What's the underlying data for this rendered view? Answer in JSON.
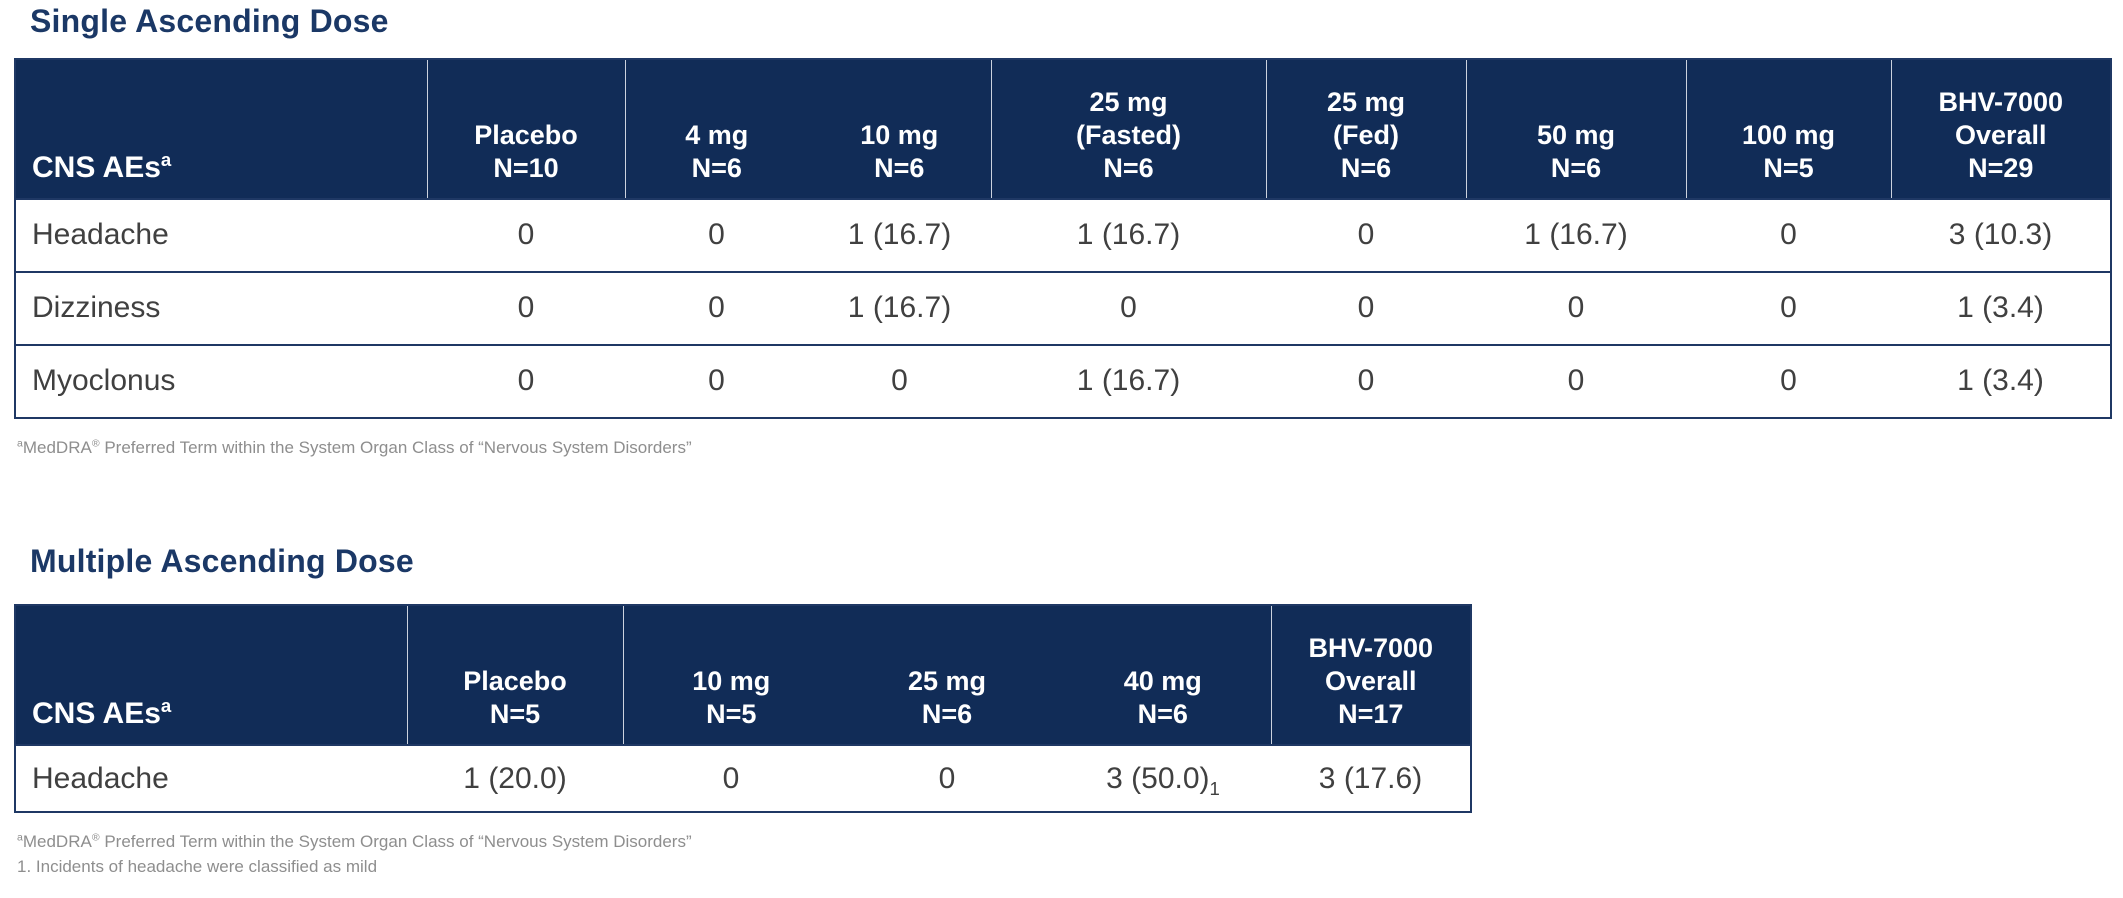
{
  "colors": {
    "header_bg": "#112c57",
    "title_text": "#1b3866",
    "table_border": "#1f3864",
    "body_text": "#404040",
    "footnote_text": "#8e8e8e",
    "header_text": "#ffffff",
    "header_separator": "#ccd2de"
  },
  "sections": [
    {
      "title": "Single Ascending Dose",
      "table": {
        "label_header": [
          {
            "t": "CNS AEs"
          },
          {
            "t": "a",
            "s": "sup"
          }
        ],
        "columns": [
          {
            "lines": [
              "Placebo",
              "N=10"
            ]
          },
          {
            "lines": [
              "4 mg",
              "N=6"
            ]
          },
          {
            "lines": [
              "10 mg",
              "N=6"
            ]
          },
          {
            "lines": [
              "25 mg",
              "(Fasted)",
              "N=6"
            ]
          },
          {
            "lines": [
              "25 mg",
              "(Fed)",
              "N=6"
            ]
          },
          {
            "lines": [
              "50 mg",
              "N=6"
            ]
          },
          {
            "lines": [
              "100 mg",
              "N=5"
            ]
          },
          {
            "lines": [
              "BHV-7000",
              "Overall",
              "N=29"
            ]
          }
        ],
        "rows": [
          {
            "label": "Headache",
            "values": [
              "0",
              "0",
              "1 (16.7)",
              "1 (16.7)",
              "0",
              "1 (16.7)",
              "0",
              "3 (10.3)"
            ]
          },
          {
            "label": "Dizziness",
            "values": [
              "0",
              "0",
              "1 (16.7)",
              "0",
              "0",
              "0",
              "0",
              "1 (3.4)"
            ]
          },
          {
            "label": "Myoclonus",
            "values": [
              "0",
              "0",
              "0",
              "1 (16.7)",
              "0",
              "0",
              "0",
              "1 (3.4)"
            ]
          }
        ]
      },
      "footnotes": [
        [
          {
            "t": "a",
            "s": "sup"
          },
          {
            "t": "MedDRA"
          },
          {
            "t": "®",
            "s": "sup"
          },
          {
            "t": " Preferred Term within the System Organ Class of  “Nervous System Disorders”"
          }
        ]
      ]
    },
    {
      "title": "Multiple Ascending Dose",
      "table": {
        "label_header": [
          {
            "t": "CNS AEs"
          },
          {
            "t": "a",
            "s": "sup"
          }
        ],
        "columns": [
          {
            "lines": [
              "Placebo",
              "N=5"
            ]
          },
          {
            "lines": [
              "10 mg",
              "N=5"
            ]
          },
          {
            "lines": [
              "25 mg",
              "N=6"
            ]
          },
          {
            "lines": [
              "40 mg",
              "N=6"
            ]
          },
          {
            "lines": [
              "BHV-7000",
              "Overall",
              "N=17"
            ]
          }
        ],
        "rows": [
          {
            "label": "Headache",
            "values": [
              "1 (20.0)",
              "0",
              "0",
              [
                {
                  "t": "3 (50.0)"
                },
                {
                  "t": "1",
                  "s": "sub"
                }
              ],
              "3 (17.6)"
            ]
          }
        ]
      },
      "footnotes": [
        [
          {
            "t": "a",
            "s": "sup"
          },
          {
            "t": "MedDRA"
          },
          {
            "t": "®",
            "s": "sup"
          },
          {
            "t": " Preferred Term within the System Organ Class of  “Nervous System Disorders”"
          }
        ],
        [
          {
            "t": "1. Incidents of headache were classified as mild"
          }
        ]
      ]
    }
  ]
}
